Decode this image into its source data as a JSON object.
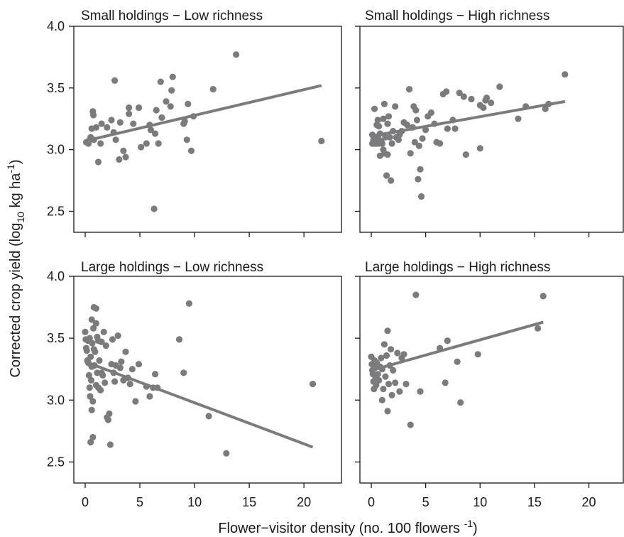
{
  "colors": {
    "points": "#7b7b7d",
    "fit_line": "#7b7b7d",
    "axis": "#1a1a1a"
  },
  "chart_data": {
    "type": "scatter",
    "layout": "2x2 panels with shared axes",
    "xlabel": "Flower−visitor density (no. 100 flowers ⁻¹)",
    "xlabel_main": "Flower−visitor density (no. 100 flowers ",
    "xlabel_sup": "-1",
    "xlabel_close": ")",
    "ylabel": "Corrected crop yield (log₁₀ kg ha⁻¹)",
    "ylabel_a": "Corrected crop yield (log",
    "ylabel_sub": "10",
    "ylabel_b": " kg ha",
    "ylabel_sup": "-1",
    "ylabel_close": ")",
    "xlim": [
      -0.5,
      22
    ],
    "ylim": [
      2.33,
      4.0
    ],
    "x_ticks": [
      "0",
      "5",
      "10",
      "15",
      "20"
    ],
    "x_tick_values": [
      0,
      5,
      10,
      15,
      20
    ],
    "y_ticks": [
      "2.5",
      "3.0",
      "3.5",
      "4.0"
    ],
    "y_tick_values": [
      2.5,
      3.0,
      3.5,
      4.0
    ],
    "panels": [
      {
        "title": "Small holdings − Low richness",
        "fit": {
          "x": [
            0,
            21.6
          ],
          "y": [
            3.07,
            3.52
          ]
        },
        "points": [
          [
            0.1,
            3.06
          ],
          [
            0.3,
            3.05
          ],
          [
            0.4,
            3.08
          ],
          [
            0.5,
            3.1
          ],
          [
            0.6,
            3.17
          ],
          [
            0.7,
            3.31
          ],
          [
            0.75,
            3.28
          ],
          [
            0.8,
            3.08
          ],
          [
            1.0,
            3.18
          ],
          [
            1.2,
            2.9
          ],
          [
            1.4,
            3.05
          ],
          [
            1.5,
            3.21
          ],
          [
            2.0,
            3.18
          ],
          [
            2.4,
            3.24
          ],
          [
            2.6,
            3.14
          ],
          [
            2.7,
            3.56
          ],
          [
            2.8,
            3.08
          ],
          [
            3.1,
            2.92
          ],
          [
            3.2,
            3.22
          ],
          [
            3.5,
            2.99
          ],
          [
            3.7,
            2.94
          ],
          [
            4.0,
            3.34
          ],
          [
            4.0,
            3.29
          ],
          [
            4.4,
            3.21
          ],
          [
            4.9,
            3.34
          ],
          [
            5.1,
            3.02
          ],
          [
            5.6,
            3.05
          ],
          [
            5.9,
            3.2
          ],
          [
            6.0,
            3.16
          ],
          [
            6.3,
            2.52
          ],
          [
            6.4,
            3.13
          ],
          [
            6.5,
            3.32
          ],
          [
            6.7,
            3.05
          ],
          [
            6.9,
            3.55
          ],
          [
            7.0,
            3.26
          ],
          [
            7.4,
            3.39
          ],
          [
            7.8,
            3.35
          ],
          [
            7.9,
            3.48
          ],
          [
            8.0,
            3.59
          ],
          [
            9.0,
            3.21
          ],
          [
            9.1,
            3.23
          ],
          [
            9.3,
            3.08
          ],
          [
            9.4,
            3.37
          ],
          [
            9.7,
            2.99
          ],
          [
            9.9,
            3.27
          ],
          [
            11.7,
            3.49
          ],
          [
            13.8,
            3.77
          ],
          [
            21.6,
            3.07
          ]
        ]
      },
      {
        "title": "Small holdings − High richness",
        "fit": {
          "x": [
            0,
            17.8
          ],
          "y": [
            3.11,
            3.39
          ]
        },
        "points": [
          [
            0.1,
            3.05
          ],
          [
            0.1,
            3.12
          ],
          [
            0.2,
            3.08
          ],
          [
            0.3,
            3.33
          ],
          [
            0.3,
            3.05
          ],
          [
            0.4,
            3.09
          ],
          [
            0.5,
            3.2
          ],
          [
            0.5,
            3.05
          ],
          [
            0.6,
            3.24
          ],
          [
            0.6,
            3.1
          ],
          [
            0.7,
            3.19
          ],
          [
            0.7,
            3.05
          ],
          [
            0.8,
            2.95
          ],
          [
            0.8,
            3.13
          ],
          [
            0.9,
            3.07
          ],
          [
            1.0,
            3.05
          ],
          [
            1.1,
            3.25
          ],
          [
            1.1,
            3.0
          ],
          [
            1.2,
            3.37
          ],
          [
            1.2,
            2.97
          ],
          [
            1.3,
            3.1
          ],
          [
            1.4,
            2.79
          ],
          [
            1.5,
            3.21
          ],
          [
            1.5,
            2.96
          ],
          [
            1.6,
            3.27
          ],
          [
            1.7,
            3.1
          ],
          [
            1.8,
            2.75
          ],
          [
            1.9,
            3.05
          ],
          [
            2.0,
            3.15
          ],
          [
            2.2,
            3.35
          ],
          [
            2.3,
            3.1
          ],
          [
            2.5,
            3.08
          ],
          [
            2.6,
            3.12
          ],
          [
            2.8,
            3.15
          ],
          [
            3.0,
            3.22
          ],
          [
            3.3,
            3.2
          ],
          [
            3.5,
            3.49
          ],
          [
            3.6,
            2.97
          ],
          [
            3.8,
            3.18
          ],
          [
            3.9,
            3.35
          ],
          [
            4.0,
            3.06
          ],
          [
            4.1,
            3.32
          ],
          [
            4.2,
            3.24
          ],
          [
            4.3,
            2.76
          ],
          [
            4.4,
            3.03
          ],
          [
            4.5,
            2.84
          ],
          [
            4.6,
            2.62
          ],
          [
            4.7,
            3.09
          ],
          [
            5.0,
            3.16
          ],
          [
            5.2,
            3.27
          ],
          [
            5.5,
            3.3
          ],
          [
            5.8,
            3.21
          ],
          [
            6.0,
            3.06
          ],
          [
            6.3,
            3.05
          ],
          [
            6.6,
            3.45
          ],
          [
            6.9,
            3.47
          ],
          [
            7.0,
            3.17
          ],
          [
            7.5,
            3.24
          ],
          [
            7.7,
            3.17
          ],
          [
            8.1,
            3.46
          ],
          [
            8.5,
            3.43
          ],
          [
            8.7,
            2.96
          ],
          [
            9.2,
            3.41
          ],
          [
            10.0,
            3.36
          ],
          [
            10.0,
            3.01
          ],
          [
            10.3,
            3.34
          ],
          [
            10.5,
            3.4
          ],
          [
            10.6,
            3.42
          ],
          [
            11.0,
            3.38
          ],
          [
            11.8,
            3.51
          ],
          [
            13.5,
            3.25
          ],
          [
            14.2,
            3.35
          ],
          [
            16.0,
            3.33
          ],
          [
            16.3,
            3.37
          ],
          [
            17.8,
            3.61
          ]
        ]
      },
      {
        "title": "Large holdings − Low richness",
        "fit": {
          "x": [
            0,
            20.8
          ],
          "y": [
            3.31,
            2.62
          ]
        },
        "points": [
          [
            0.0,
            3.55
          ],
          [
            0.05,
            3.49
          ],
          [
            0.1,
            3.42
          ],
          [
            0.15,
            3.4
          ],
          [
            0.2,
            3.32
          ],
          [
            0.25,
            3.48
          ],
          [
            0.3,
            3.3
          ],
          [
            0.35,
            3.2
          ],
          [
            0.4,
            3.5
          ],
          [
            0.4,
            3.1
          ],
          [
            0.45,
            3.03
          ],
          [
            0.5,
            3.35
          ],
          [
            0.5,
            2.66
          ],
          [
            0.55,
            3.16
          ],
          [
            0.6,
            3.27
          ],
          [
            0.6,
            2.92
          ],
          [
            0.65,
            3.46
          ],
          [
            0.7,
            2.99
          ],
          [
            0.7,
            2.7
          ],
          [
            0.75,
            3.58
          ],
          [
            0.8,
            3.41
          ],
          [
            0.85,
            3.28
          ],
          [
            0.9,
            3.39
          ],
          [
            1.0,
            3.62
          ],
          [
            1.0,
            3.12
          ],
          [
            1.1,
            3.51
          ],
          [
            1.1,
            3.22
          ],
          [
            1.2,
            3.48
          ],
          [
            1.2,
            3.1
          ],
          [
            1.3,
            3.32
          ],
          [
            1.4,
            3.08
          ],
          [
            1.5,
            3.47
          ],
          [
            1.6,
            3.2
          ],
          [
            1.7,
            3.55
          ],
          [
            1.8,
            3.14
          ],
          [
            1.9,
            3.44
          ],
          [
            2.0,
            2.86
          ],
          [
            2.1,
            2.84
          ],
          [
            2.2,
            2.89
          ],
          [
            2.3,
            2.64
          ],
          [
            2.4,
            3.29
          ],
          [
            2.5,
            3.49
          ],
          [
            2.6,
            3.22
          ],
          [
            2.7,
            3.15
          ],
          [
            3.0,
            3.52
          ],
          [
            3.2,
            3.26
          ],
          [
            3.3,
            3.31
          ],
          [
            3.5,
            3.16
          ],
          [
            3.7,
            3.39
          ],
          [
            3.9,
            3.18
          ],
          [
            4.1,
            3.13
          ],
          [
            4.3,
            3.25
          ],
          [
            4.6,
            2.99
          ],
          [
            4.9,
            3.29
          ],
          [
            5.6,
            3.11
          ],
          [
            5.9,
            3.03
          ],
          [
            6.2,
            3.1
          ],
          [
            6.4,
            3.21
          ],
          [
            6.6,
            3.1
          ],
          [
            8.6,
            3.49
          ],
          [
            9.0,
            3.22
          ],
          [
            9.5,
            3.78
          ],
          [
            11.3,
            2.87
          ],
          [
            12.9,
            2.57
          ],
          [
            20.8,
            3.13
          ],
          [
            0.6,
            3.65
          ],
          [
            0.8,
            3.75
          ],
          [
            1.0,
            3.74
          ],
          [
            1.5,
            3.22
          ],
          [
            2.8,
            3.28
          ]
        ]
      },
      {
        "title": "Large holdings − High richness",
        "fit": {
          "x": [
            0,
            15.8
          ],
          "y": [
            3.24,
            3.63
          ]
        },
        "points": [
          [
            0.0,
            3.35
          ],
          [
            0.05,
            3.29
          ],
          [
            0.1,
            3.24
          ],
          [
            0.15,
            3.21
          ],
          [
            0.2,
            3.15
          ],
          [
            0.25,
            3.09
          ],
          [
            0.3,
            3.32
          ],
          [
            0.35,
            3.26
          ],
          [
            0.4,
            3.18
          ],
          [
            0.45,
            3.12
          ],
          [
            0.5,
            3.3
          ],
          [
            0.6,
            3.21
          ],
          [
            0.7,
            3.16
          ],
          [
            0.8,
            3.27
          ],
          [
            0.9,
            3.34
          ],
          [
            1.0,
            3.25
          ],
          [
            1.0,
            3.0
          ],
          [
            1.1,
            3.09
          ],
          [
            1.2,
            3.45
          ],
          [
            1.3,
            3.19
          ],
          [
            1.4,
            3.36
          ],
          [
            1.5,
            3.56
          ],
          [
            1.5,
            2.91
          ],
          [
            1.6,
            3.13
          ],
          [
            1.7,
            3.28
          ],
          [
            1.8,
            3.41
          ],
          [
            1.9,
            3.04
          ],
          [
            2.0,
            3.24
          ],
          [
            2.2,
            3.14
          ],
          [
            2.4,
            3.38
          ],
          [
            2.6,
            3.07
          ],
          [
            2.8,
            3.34
          ],
          [
            3.0,
            3.37
          ],
          [
            3.2,
            3.13
          ],
          [
            3.6,
            2.8
          ],
          [
            4.1,
            3.85
          ],
          [
            4.5,
            3.07
          ],
          [
            6.3,
            3.42
          ],
          [
            6.8,
            3.14
          ],
          [
            7.0,
            3.48
          ],
          [
            7.9,
            3.31
          ],
          [
            8.2,
            2.98
          ],
          [
            9.8,
            3.37
          ],
          [
            15.3,
            3.58
          ],
          [
            15.8,
            3.84
          ]
        ]
      }
    ]
  }
}
